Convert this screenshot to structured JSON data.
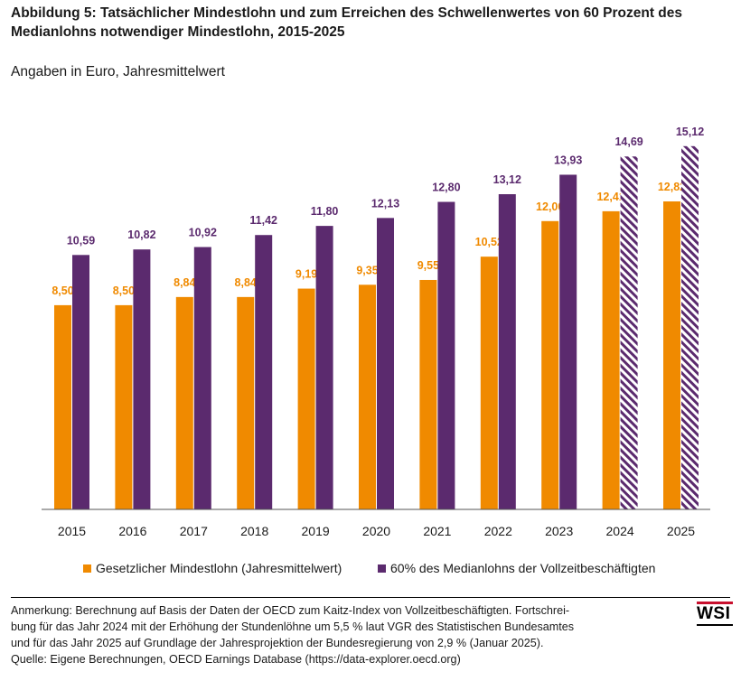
{
  "header": {
    "title": "Abbildung 5: Tatsächlicher Mindestlohn und zum Erreichen des Schwellenwertes von 60 Prozent des Medianlohns notwendiger Mindestlohn, 2015-2025",
    "subtitle": "Angaben in Euro, Jahresmittelwert"
  },
  "chart_data": {
    "type": "bar",
    "title": "Abbildung 5: Tatsächlicher Mindestlohn und zum Erreichen des Schwellenwertes von 60 Prozent des Medianlohns notwendiger Mindestlohn, 2015-2025",
    "subtitle": "Angaben in Euro, Jahresmittelwert",
    "categories": [
      "2015",
      "2016",
      "2017",
      "2018",
      "2019",
      "2020",
      "2021",
      "2022",
      "2023",
      "2024",
      "2025"
    ],
    "series": [
      {
        "name": "Gesetzlicher Mindestlohn (Jahresmittelwert)",
        "color": "#f08a00",
        "values": [
          8.5,
          8.5,
          8.84,
          8.84,
          9.19,
          9.35,
          9.55,
          10.52,
          12.0,
          12.41,
          12.82
        ],
        "labels": [
          "8,50",
          "8,50",
          "8,84",
          "8,84",
          "9,19",
          "9,35",
          "9,55",
          "10,52",
          "12,00",
          "12,41",
          "12,82"
        ]
      },
      {
        "name": "60% des Medianlohns der Vollzeitbeschäftigten",
        "color": "#5b2a6e",
        "values": [
          10.59,
          10.82,
          10.92,
          11.42,
          11.8,
          12.13,
          12.8,
          13.12,
          13.93,
          14.69,
          15.12
        ],
        "labels": [
          "10,59",
          "10,82",
          "10,92",
          "11,42",
          "11,80",
          "12,13",
          "12,80",
          "13,12",
          "13,93",
          "14,69",
          "15,12"
        ],
        "hatched": [
          false,
          false,
          false,
          false,
          false,
          false,
          false,
          false,
          false,
          true,
          true
        ]
      }
    ],
    "ylim": [
      0,
      16
    ],
    "grid": false,
    "legend_position": "bottom"
  },
  "legend": [
    {
      "label": "Gesetzlicher Mindestlohn (Jahresmittelwert)",
      "color": "#f08a00"
    },
    {
      "label": "60% des Medianlohns der Vollzeitbeschäftigten",
      "color": "#5b2a6e"
    }
  ],
  "notes": {
    "line1": "Anmerkung: Berechnung auf Basis der Daten der OECD zum Kaitz-Index von Vollzeitbeschäftigten. Fortschrei-",
    "line2": "bung für das Jahr 2024 mit der Erhöhung der Stundenlöhne um 5,5 % laut VGR des Statistischen Bundesamtes",
    "line3": "und für das Jahr 2025 auf Grundlage der Jahresprojektion der Bundesregierung von 2,9 % (Januar 2025).",
    "source_prefix": "Quelle: Eigene Berechnungen, OECD Earnings Database (",
    "source_link": "https://data-explorer.oecd.org",
    "source_suffix": ")"
  },
  "logo": {
    "text": "WSI"
  }
}
